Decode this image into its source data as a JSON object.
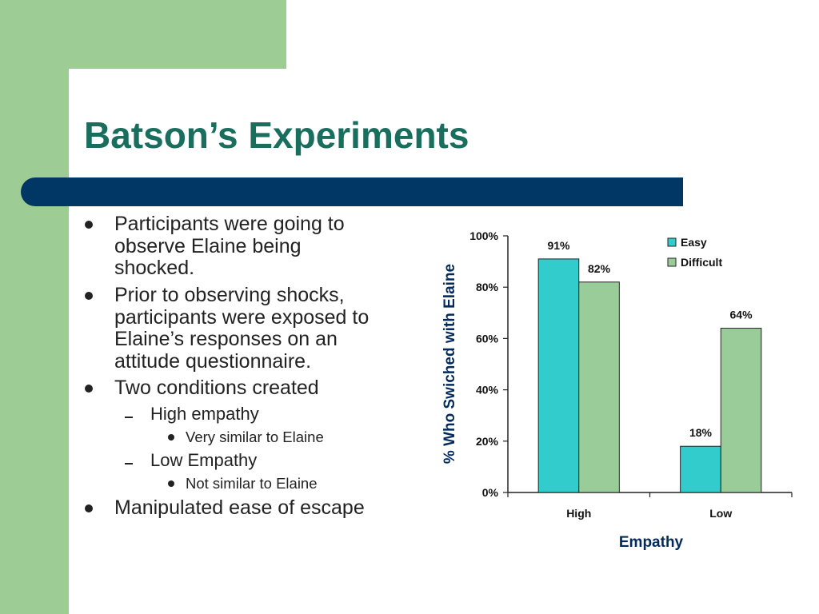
{
  "slide": {
    "title": "Batson’s Experiments",
    "colors": {
      "accent_green": "#9dcd94",
      "title_text": "#1a6e5e",
      "bar_navy": "#003764"
    },
    "bullets": [
      {
        "level": 1,
        "lines": [
          "Participants were going to",
          "observe Elaine being",
          "shocked."
        ]
      },
      {
        "level": 1,
        "lines": [
          "Prior to observing shocks,",
          "participants were exposed to",
          "Elaine’s responses on an",
          "attitude questionnaire."
        ]
      },
      {
        "level": 1,
        "lines": [
          "Two conditions created"
        ]
      },
      {
        "level": 2,
        "lines": [
          "High empathy"
        ]
      },
      {
        "level": 3,
        "lines": [
          "Very similar to Elaine"
        ]
      },
      {
        "level": 2,
        "lines": [
          "Low Empathy"
        ]
      },
      {
        "level": 3,
        "lines": [
          "Not similar to Elaine"
        ]
      },
      {
        "level": 1,
        "lines": [
          "Manipulated ease of escape"
        ]
      }
    ]
  },
  "chart_data": {
    "type": "bar",
    "categories": [
      "High",
      "Low"
    ],
    "series": [
      {
        "name": "Easy",
        "values": [
          91,
          18
        ],
        "labels": [
          "91%",
          "18%"
        ],
        "color": "#33cccc"
      },
      {
        "name": "Difficult",
        "values": [
          82,
          64
        ],
        "labels": [
          "82%",
          "64%"
        ],
        "color": "#99cc99"
      }
    ],
    "xlabel": "Empathy",
    "ylabel": "% Who Swiched with Elaine",
    "ylim": [
      0,
      100
    ],
    "yticks": [
      "0%",
      "20%",
      "40%",
      "60%",
      "80%",
      "100%"
    ],
    "legend": "top-right",
    "grid": false
  }
}
